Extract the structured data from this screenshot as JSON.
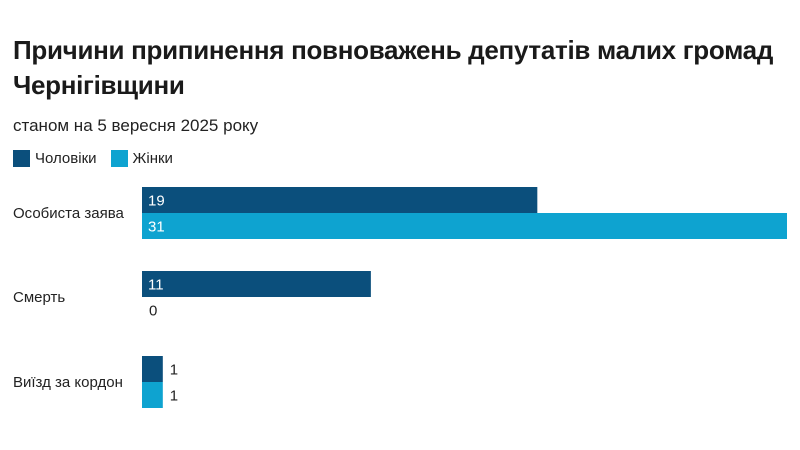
{
  "chart_data": {
    "type": "bar",
    "orientation": "horizontal",
    "title": "Причини припинення повноважень депутатів малих громад Чернігівщини",
    "subtitle": "станом на 5 вересня 2025 року",
    "categories": [
      "Особиста заява",
      "Смерть",
      "Виїзд за кордон"
    ],
    "series": [
      {
        "name": "Чоловіки",
        "color": "#0b4f7c",
        "values": [
          19,
          11,
          1
        ]
      },
      {
        "name": "Жінки",
        "color": "#0ea3d0",
        "values": [
          31,
          0,
          1
        ]
      }
    ],
    "xlim": [
      0,
      31
    ],
    "grid": false,
    "legend": "top-left",
    "data_labels": true
  }
}
